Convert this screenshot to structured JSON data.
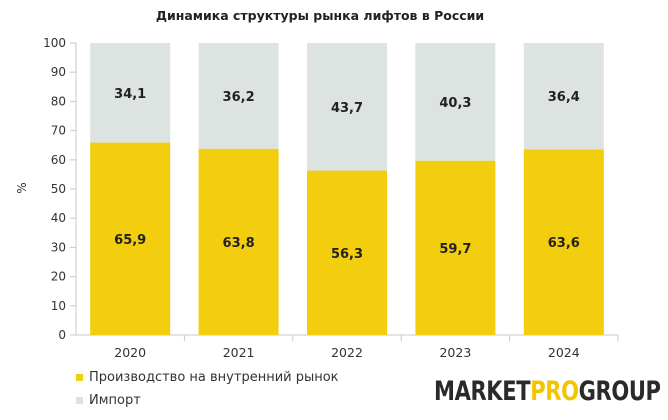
{
  "chart_data": {
    "type": "bar",
    "stacked": true,
    "title": "Динамика структуры рынка лифтов в России",
    "xlabel": "",
    "ylabel": "%",
    "ylim": [
      0,
      100
    ],
    "yticks": [
      0,
      10,
      20,
      30,
      40,
      50,
      60,
      70,
      80,
      90,
      100
    ],
    "categories": [
      "2020",
      "2021",
      "2022",
      "2023",
      "2024"
    ],
    "series": [
      {
        "name": "Производство на внутренний рынок",
        "color": "#f2ce0f",
        "values": [
          65.9,
          63.8,
          56.3,
          59.7,
          63.6
        ],
        "labels": [
          "65,9",
          "63,8",
          "56,3",
          "59,7",
          "63,6"
        ]
      },
      {
        "name": "Импорт",
        "color": "#dde3e1",
        "values": [
          34.1,
          36.2,
          43.7,
          40.3,
          36.4
        ],
        "labels": [
          "34,1",
          "36,2",
          "43,7",
          "40,3",
          "36,4"
        ]
      }
    ],
    "grid": false,
    "legend_position": "bottom-left"
  },
  "logo": {
    "part1": "MARKET",
    "part2": "PRO",
    "part3": "GROUP"
  }
}
